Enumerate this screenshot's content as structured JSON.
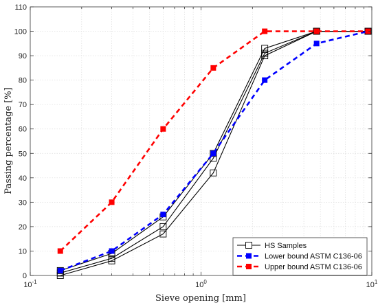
{
  "chart_data": {
    "type": "line",
    "title": "",
    "xlabel": "Sieve opening [mm]",
    "ylabel": "Passing percentage [%]",
    "xscale": "log",
    "xlim": [
      0.1,
      10
    ],
    "ylim": [
      0,
      110
    ],
    "grid": true,
    "legend_position": "bottom-right",
    "x_ticks": [
      {
        "value": 0.1,
        "base": "10",
        "exp": "-1"
      },
      {
        "value": 1,
        "base": "10",
        "exp": "0"
      },
      {
        "value": 10,
        "base": "10",
        "exp": "1"
      }
    ],
    "y_ticks": [
      "0",
      "10",
      "20",
      "30",
      "40",
      "50",
      "60",
      "70",
      "80",
      "90",
      "100",
      "110"
    ],
    "series": [
      {
        "name": "HS Samples",
        "color": "#000000",
        "style": "solid",
        "marker": "open-square",
        "legend": true,
        "x": [
          0.15,
          0.3,
          0.6,
          1.18,
          2.36,
          4.75,
          9.5
        ],
        "y": [
          0,
          6,
          17,
          42,
          90,
          100,
          100
        ]
      },
      {
        "name": "",
        "color": "#000000",
        "style": "solid",
        "marker": "open-square",
        "legend": false,
        "x": [
          0.15,
          0.3,
          0.6,
          1.18,
          2.36,
          4.75,
          9.5
        ],
        "y": [
          1,
          7,
          20,
          48,
          91,
          100,
          100
        ]
      },
      {
        "name": "",
        "color": "#000000",
        "style": "solid",
        "marker": "open-square",
        "legend": false,
        "x": [
          0.15,
          0.3,
          0.6,
          1.18,
          2.36,
          4.75,
          9.5
        ],
        "y": [
          2,
          9,
          24,
          50,
          93,
          100,
          100
        ]
      },
      {
        "name": "Lower bound ASTM C136-06",
        "color": "#0000ff",
        "style": "dashed",
        "marker": "filled-square",
        "legend": true,
        "x": [
          0.15,
          0.3,
          0.6,
          1.18,
          2.36,
          4.75,
          9.5
        ],
        "y": [
          2,
          10,
          25,
          50,
          80,
          95,
          100
        ]
      },
      {
        "name": "Upper bound ASTM C136-06",
        "color": "#ff0000",
        "style": "dashed",
        "marker": "filled-square",
        "legend": true,
        "x": [
          0.15,
          0.3,
          0.6,
          1.18,
          2.36,
          4.75,
          9.5
        ],
        "y": [
          10,
          30,
          60,
          85,
          100,
          100,
          100
        ]
      }
    ]
  }
}
